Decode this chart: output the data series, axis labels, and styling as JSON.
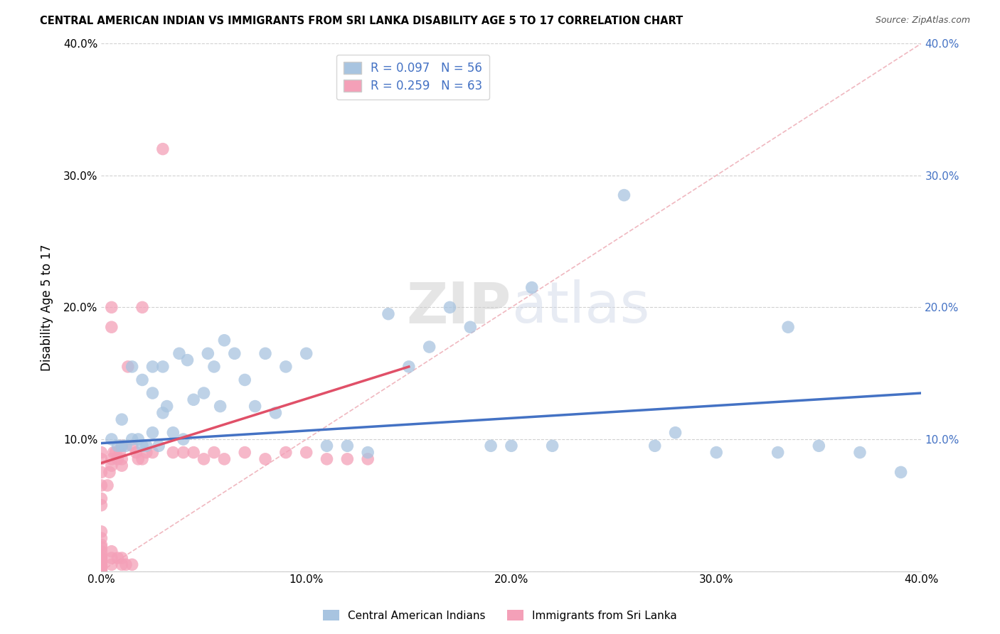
{
  "title": "CENTRAL AMERICAN INDIAN VS IMMIGRANTS FROM SRI LANKA DISABILITY AGE 5 TO 17 CORRELATION CHART",
  "source": "Source: ZipAtlas.com",
  "ylabel_label": "Disability Age 5 to 17",
  "xlim": [
    0.0,
    0.4
  ],
  "ylim": [
    0.0,
    0.4
  ],
  "xticks": [
    0.0,
    0.1,
    0.2,
    0.3,
    0.4
  ],
  "yticks": [
    0.0,
    0.1,
    0.2,
    0.3,
    0.4
  ],
  "blue_R": 0.097,
  "blue_N": 56,
  "pink_R": 0.259,
  "pink_N": 63,
  "blue_color": "#a8c4e0",
  "pink_color": "#f4a0b8",
  "blue_line_color": "#4472c4",
  "pink_line_color": "#e05068",
  "legend_blue_face": "#a8c4e0",
  "legend_pink_face": "#f4a0b8",
  "grid_color": "#cccccc",
  "background_color": "#ffffff",
  "diag_line_color": "#f0b8c0",
  "blue_scatter_x": [
    0.005,
    0.008,
    0.01,
    0.01,
    0.012,
    0.015,
    0.015,
    0.018,
    0.02,
    0.02,
    0.022,
    0.025,
    0.025,
    0.025,
    0.028,
    0.03,
    0.03,
    0.032,
    0.035,
    0.038,
    0.04,
    0.042,
    0.045,
    0.05,
    0.052,
    0.055,
    0.058,
    0.06,
    0.065,
    0.07,
    0.075,
    0.08,
    0.085,
    0.09,
    0.1,
    0.11,
    0.12,
    0.13,
    0.14,
    0.15,
    0.16,
    0.17,
    0.18,
    0.19,
    0.2,
    0.21,
    0.22,
    0.255,
    0.27,
    0.28,
    0.3,
    0.33,
    0.335,
    0.35,
    0.37,
    0.39
  ],
  "blue_scatter_y": [
    0.1,
    0.095,
    0.095,
    0.115,
    0.095,
    0.1,
    0.155,
    0.1,
    0.095,
    0.145,
    0.095,
    0.105,
    0.135,
    0.155,
    0.095,
    0.12,
    0.155,
    0.125,
    0.105,
    0.165,
    0.1,
    0.16,
    0.13,
    0.135,
    0.165,
    0.155,
    0.125,
    0.175,
    0.165,
    0.145,
    0.125,
    0.165,
    0.12,
    0.155,
    0.165,
    0.095,
    0.095,
    0.09,
    0.195,
    0.155,
    0.17,
    0.2,
    0.185,
    0.095,
    0.095,
    0.215,
    0.095,
    0.285,
    0.095,
    0.105,
    0.09,
    0.09,
    0.185,
    0.095,
    0.09,
    0.075
  ],
  "pink_scatter_x": [
    0.0,
    0.0,
    0.0,
    0.0,
    0.0,
    0.0,
    0.0,
    0.0,
    0.0,
    0.0,
    0.0,
    0.0,
    0.0,
    0.0,
    0.0,
    0.0,
    0.0,
    0.0,
    0.0,
    0.0,
    0.003,
    0.004,
    0.005,
    0.005,
    0.005,
    0.005,
    0.005,
    0.006,
    0.007,
    0.008,
    0.008,
    0.009,
    0.01,
    0.01,
    0.01,
    0.01,
    0.01,
    0.012,
    0.013,
    0.015,
    0.015,
    0.017,
    0.018,
    0.02,
    0.02,
    0.022,
    0.025,
    0.03,
    0.035,
    0.04,
    0.045,
    0.05,
    0.055,
    0.06,
    0.07,
    0.08,
    0.09,
    0.1,
    0.11,
    0.12,
    0.13,
    0.005,
    0.005
  ],
  "pink_scatter_y": [
    0.0,
    0.0,
    0.002,
    0.004,
    0.005,
    0.007,
    0.01,
    0.01,
    0.012,
    0.015,
    0.018,
    0.02,
    0.025,
    0.03,
    0.05,
    0.055,
    0.065,
    0.075,
    0.085,
    0.09,
    0.065,
    0.075,
    0.005,
    0.01,
    0.015,
    0.08,
    0.085,
    0.09,
    0.09,
    0.01,
    0.085,
    0.09,
    0.005,
    0.01,
    0.08,
    0.085,
    0.095,
    0.005,
    0.155,
    0.005,
    0.095,
    0.09,
    0.085,
    0.085,
    0.2,
    0.09,
    0.09,
    0.32,
    0.09,
    0.09,
    0.09,
    0.085,
    0.09,
    0.085,
    0.09,
    0.085,
    0.09,
    0.09,
    0.085,
    0.085,
    0.085,
    0.2,
    0.185
  ],
  "blue_trend_x0": 0.0,
  "blue_trend_y0": 0.097,
  "blue_trend_x1": 0.4,
  "blue_trend_y1": 0.135,
  "pink_trend_x0": 0.0,
  "pink_trend_y0": 0.082,
  "pink_trend_x1": 0.15,
  "pink_trend_y1": 0.155
}
